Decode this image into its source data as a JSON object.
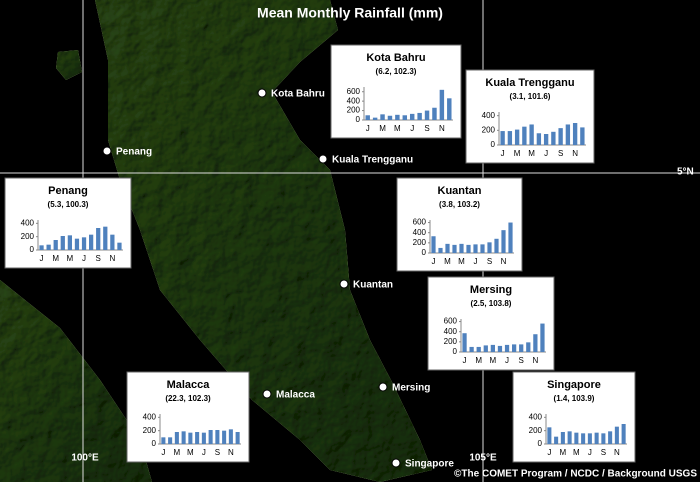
{
  "title": "Mean Monthly Rainfall (mm)",
  "credit": "©The COMET Program / NCDC / Background USGS",
  "gridlines": [
    {
      "label": "5°N"
    },
    {
      "label": "100°E"
    },
    {
      "label": "105°E"
    }
  ],
  "places": [
    {
      "label": "Kota Bahru"
    },
    {
      "label": "Penang"
    },
    {
      "label": "Kuala Trengganu"
    },
    {
      "label": "Kuantan"
    },
    {
      "label": "Malacca"
    },
    {
      "label": "Mersing"
    },
    {
      "label": "Singapore"
    }
  ],
  "chart_data": [
    {
      "type": "bar",
      "title": "Kota Bahru",
      "subtitle": "(6.2, 102.3)",
      "color": "#4f81bd",
      "categories": [
        "J",
        null,
        "M",
        null,
        "M",
        null,
        "J",
        null,
        "S",
        null,
        "N",
        null
      ],
      "values": [
        100,
        50,
        120,
        90,
        110,
        100,
        130,
        150,
        200,
        260,
        640,
        460
      ],
      "ylim": [
        0,
        700
      ],
      "yticks": [
        0,
        200,
        400,
        600
      ]
    },
    {
      "type": "bar",
      "title": "Kuala Trengganu",
      "subtitle": "(3.1, 101.6)",
      "color": "#4f81bd",
      "categories": [
        "J",
        null,
        "M",
        null,
        "M",
        null,
        "J",
        null,
        "S",
        null,
        "N",
        null
      ],
      "values": [
        190,
        190,
        210,
        250,
        280,
        160,
        150,
        180,
        230,
        280,
        300,
        240
      ],
      "ylim": [
        0,
        450
      ],
      "yticks": [
        0,
        200,
        400
      ]
    },
    {
      "type": "bar",
      "title": "Penang",
      "subtitle": "(5.3, 100.3)",
      "color": "#4f81bd",
      "categories": [
        "J",
        null,
        "M",
        null,
        "M",
        null,
        "J",
        null,
        "S",
        null,
        "N",
        null
      ],
      "values": [
        70,
        80,
        150,
        210,
        220,
        170,
        190,
        230,
        330,
        350,
        230,
        110
      ],
      "ylim": [
        0,
        450
      ],
      "yticks": [
        0,
        200,
        400
      ]
    },
    {
      "type": "bar",
      "title": "Kuantan",
      "subtitle": "(3.8, 103.2)",
      "color": "#4f81bd",
      "categories": [
        "J",
        null,
        "M",
        null,
        "M",
        null,
        "J",
        null,
        "S",
        null,
        "N",
        null
      ],
      "values": [
        330,
        100,
        180,
        160,
        180,
        160,
        170,
        170,
        210,
        280,
        450,
        600
      ],
      "ylim": [
        0,
        650
      ],
      "yticks": [
        0,
        200,
        400,
        600
      ]
    },
    {
      "type": "bar",
      "title": "Mersing",
      "subtitle": "(2.5, 103.8)",
      "color": "#4f81bd",
      "categories": [
        "J",
        null,
        "M",
        null,
        "M",
        null,
        "J",
        null,
        "S",
        null,
        "N",
        null
      ],
      "values": [
        370,
        100,
        100,
        130,
        140,
        120,
        140,
        150,
        150,
        190,
        350,
        560
      ],
      "ylim": [
        0,
        650
      ],
      "yticks": [
        0,
        200,
        400,
        600
      ]
    },
    {
      "type": "bar",
      "title": "Malacca",
      "subtitle": "(22.3, 102.3)",
      "color": "#4f81bd",
      "categories": [
        "J",
        null,
        "M",
        null,
        "M",
        null,
        "J",
        null,
        "S",
        null,
        "N",
        null
      ],
      "values": [
        100,
        100,
        180,
        190,
        170,
        180,
        170,
        210,
        210,
        200,
        220,
        180
      ],
      "ylim": [
        0,
        450
      ],
      "yticks": [
        0,
        200,
        400
      ]
    },
    {
      "type": "bar",
      "title": "Singapore",
      "subtitle": "(1.4, 103.9)",
      "color": "#4f81bd",
      "categories": [
        "J",
        null,
        "M",
        null,
        "M",
        null,
        "J",
        null,
        "S",
        null,
        "N",
        null
      ],
      "values": [
        250,
        110,
        180,
        190,
        170,
        160,
        160,
        170,
        160,
        190,
        260,
        300
      ],
      "ylim": [
        0,
        450
      ],
      "yticks": [
        0,
        200,
        400
      ]
    }
  ]
}
